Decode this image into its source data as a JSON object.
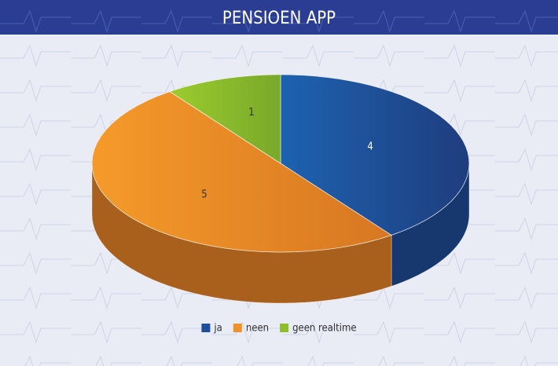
{
  "chart_data": {
    "type": "pie",
    "title": "PENSIOEN APP",
    "categories": [
      "ja",
      "neen",
      "geen realtime"
    ],
    "values": [
      4,
      5,
      1
    ],
    "colors": [
      "#1f4f98",
      "#f0922a",
      "#8dbf2b"
    ],
    "legend": "bottom"
  }
}
